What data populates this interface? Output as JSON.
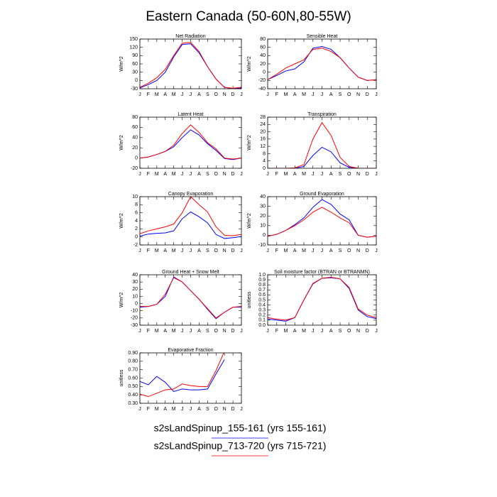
{
  "title": "Eastern Canada (50-60N,80-55W)",
  "legend": [
    {
      "name": "s2sLandSpinup_155-161 (yrs 155-161)",
      "color": "#0000ff"
    },
    {
      "name": "s2sLandSpinup_713-720 (yrs 715-721)",
      "color": "#ff0000"
    }
  ],
  "chart_data": [
    {
      "type": "line",
      "title": "Net Radiation",
      "y_label": "W/m^2",
      "categories": [
        "J",
        "F",
        "M",
        "A",
        "M",
        "J",
        "J",
        "A",
        "S",
        "O",
        "N",
        "D",
        "J"
      ],
      "ylim": [
        -30,
        150
      ],
      "yticks": [
        -30,
        0,
        30,
        60,
        90,
        120,
        150
      ],
      "series": [
        {
          "color": "#0000ff",
          "values": [
            -27,
            -15,
            0,
            30,
            85,
            130,
            133,
            100,
            50,
            5,
            -25,
            -30,
            -27
          ]
        },
        {
          "color": "#ff0000",
          "values": [
            -25,
            -10,
            10,
            40,
            90,
            135,
            138,
            105,
            50,
            5,
            -25,
            -28,
            -25
          ]
        }
      ]
    },
    {
      "type": "line",
      "title": "Sensible Heat",
      "y_label": "W/m^2",
      "categories": [
        "J",
        "F",
        "M",
        "A",
        "M",
        "J",
        "J",
        "A",
        "S",
        "O",
        "N",
        "D",
        "J"
      ],
      "ylim": [
        -40,
        80
      ],
      "yticks": [
        -40,
        -20,
        0,
        20,
        40,
        60,
        80
      ],
      "series": [
        {
          "color": "#0000ff",
          "values": [
            -18,
            -8,
            3,
            8,
            25,
            58,
            62,
            55,
            35,
            10,
            -12,
            -20,
            -18
          ]
        },
        {
          "color": "#ff0000",
          "values": [
            -18,
            -5,
            10,
            20,
            30,
            55,
            58,
            50,
            35,
            10,
            -12,
            -20,
            -18
          ]
        }
      ]
    },
    {
      "type": "line",
      "title": "Latent Heat",
      "y_label": "W/m^2",
      "categories": [
        "J",
        "F",
        "M",
        "A",
        "M",
        "J",
        "J",
        "A",
        "S",
        "O",
        "N",
        "D",
        "J"
      ],
      "ylim": [
        -20,
        80
      ],
      "yticks": [
        -20,
        0,
        20,
        40,
        60,
        80
      ],
      "series": [
        {
          "color": "#0000ff",
          "values": [
            0,
            2,
            7,
            13,
            22,
            40,
            55,
            45,
            28,
            15,
            -1,
            -3,
            0
          ]
        },
        {
          "color": "#ff0000",
          "values": [
            0,
            2,
            7,
            13,
            25,
            48,
            65,
            50,
            30,
            18,
            0,
            -2,
            0
          ]
        }
      ]
    },
    {
      "type": "line",
      "title": "Transpiration",
      "y_label": "W/m^2",
      "categories": [
        "J",
        "F",
        "M",
        "A",
        "M",
        "J",
        "J",
        "A",
        "S",
        "O",
        "N",
        "D",
        "J"
      ],
      "ylim": [
        0,
        28
      ],
      "yticks": [
        0,
        4,
        8,
        12,
        16,
        20,
        24,
        28
      ],
      "series": [
        {
          "color": "#0000ff",
          "values": [
            0,
            0,
            0,
            0,
            1,
            7,
            11.5,
            9,
            3,
            0.5,
            0,
            0,
            0
          ]
        },
        {
          "color": "#ff0000",
          "values": [
            0,
            0,
            0,
            0.2,
            2,
            16,
            25,
            18,
            6,
            1,
            0,
            0,
            0
          ]
        }
      ]
    },
    {
      "type": "line",
      "title": "Canopy Evaporation",
      "y_label": "W/m^2",
      "categories": [
        "J",
        "F",
        "M",
        "A",
        "M",
        "J",
        "J",
        "A",
        "S",
        "O",
        "N",
        "D",
        "J"
      ],
      "ylim": [
        -2,
        10
      ],
      "yticks": [
        -2,
        0,
        2,
        4,
        6,
        8,
        10
      ],
      "series": [
        {
          "color": "#0000ff",
          "values": [
            0.2,
            0.7,
            0.9,
            1,
            1.5,
            4.5,
            6.2,
            5,
            3.5,
            0.6,
            -0.4,
            -0.2,
            0.1
          ]
        },
        {
          "color": "#ff0000",
          "values": [
            0.8,
            1.5,
            2,
            2.5,
            3.2,
            6,
            10,
            8,
            6.2,
            2.5,
            0.4,
            0.3,
            0.6
          ]
        }
      ]
    },
    {
      "type": "line",
      "title": "Ground Evaporation",
      "y_label": "W/m^2",
      "categories": [
        "J",
        "F",
        "M",
        "A",
        "M",
        "J",
        "J",
        "A",
        "S",
        "O",
        "N",
        "D",
        "J"
      ],
      "ylim": [
        -10,
        40
      ],
      "yticks": [
        -10,
        0,
        10,
        20,
        30,
        40
      ],
      "series": [
        {
          "color": "#0000ff",
          "values": [
            -1,
            1,
            5,
            11,
            18,
            29,
            37,
            32,
            22,
            16,
            0,
            -2,
            -1
          ]
        },
        {
          "color": "#ff0000",
          "values": [
            -1,
            1,
            5,
            10,
            16,
            24,
            29,
            24,
            18,
            13,
            0,
            -2,
            -1
          ]
        }
      ]
    },
    {
      "type": "line",
      "title": "Ground Heat + Snow Melt",
      "y_label": "W/m^2",
      "categories": [
        "J",
        "F",
        "M",
        "A",
        "M",
        "J",
        "J",
        "A",
        "S",
        "O",
        "N",
        "D",
        "J"
      ],
      "ylim": [
        -30,
        40
      ],
      "yticks": [
        -30,
        -20,
        -10,
        0,
        10,
        20,
        30,
        40
      ],
      "series": [
        {
          "color": "#0000ff",
          "values": [
            -5,
            -4,
            -1,
            10,
            37,
            30,
            18,
            6,
            -8,
            -21,
            -12,
            -5,
            -5
          ]
        },
        {
          "color": "#ff0000",
          "values": [
            -4,
            -4,
            -1,
            13,
            36,
            30,
            18,
            6,
            -7,
            -20,
            -12,
            -5,
            -4
          ]
        }
      ]
    },
    {
      "type": "line",
      "title": "Soil moisture factor (BTRAN or BTRANMN)",
      "y_label": "unitless",
      "categories": [
        "J",
        "F",
        "M",
        "A",
        "M",
        "J",
        "J",
        "A",
        "S",
        "O",
        "N",
        "D",
        "J"
      ],
      "ylim": [
        0,
        1
      ],
      "yticks": [
        {
          "value": 0,
          "label": "0.0"
        },
        0.1,
        0.2,
        0.3,
        0.4,
        0.5,
        0.6,
        0.7,
        0.8,
        0.9,
        {
          "value": 1,
          "label": "1.0"
        }
      ],
      "series": [
        {
          "color": "#0000ff",
          "values": [
            0.12,
            0.1,
            0.08,
            0.15,
            0.5,
            0.82,
            0.93,
            0.94,
            0.92,
            0.73,
            0.3,
            0.17,
            0.13
          ]
        },
        {
          "color": "#ff0000",
          "values": [
            0.15,
            0.12,
            0.1,
            0.15,
            0.5,
            0.83,
            0.93,
            0.95,
            0.92,
            0.75,
            0.32,
            0.2,
            0.15
          ]
        }
      ]
    },
    {
      "type": "line",
      "title": "Evaporative Fraction",
      "y_label": "unitless",
      "categories": [
        "J",
        "F",
        "M",
        "A",
        "M",
        "J",
        "J",
        "A",
        "S",
        "O",
        "N",
        "D",
        "J"
      ],
      "ylim": [
        0.3,
        0.9
      ],
      "yticks": [
        {
          "value": 0.3,
          "label": "0.30"
        },
        {
          "value": 0.4,
          "label": "0.40"
        },
        {
          "value": 0.5,
          "label": "0.50"
        },
        {
          "value": 0.6,
          "label": "0.60"
        },
        {
          "value": 0.7,
          "label": "0.70"
        },
        {
          "value": 0.8,
          "label": "0.80"
        },
        {
          "value": 0.9,
          "label": "0.90"
        }
      ],
      "series": [
        {
          "color": "#0000ff",
          "values": [
            0.56,
            0.52,
            0.62,
            0.55,
            0.44,
            0.47,
            0.46,
            0.46,
            0.47,
            0.65,
            0.82,
            null,
            null
          ]
        },
        {
          "color": "#ff0000",
          "values": [
            0.41,
            0.38,
            0.42,
            0.46,
            0.47,
            0.53,
            0.51,
            0.5,
            0.5,
            0.69,
            0.92,
            null,
            null
          ]
        }
      ]
    }
  ]
}
